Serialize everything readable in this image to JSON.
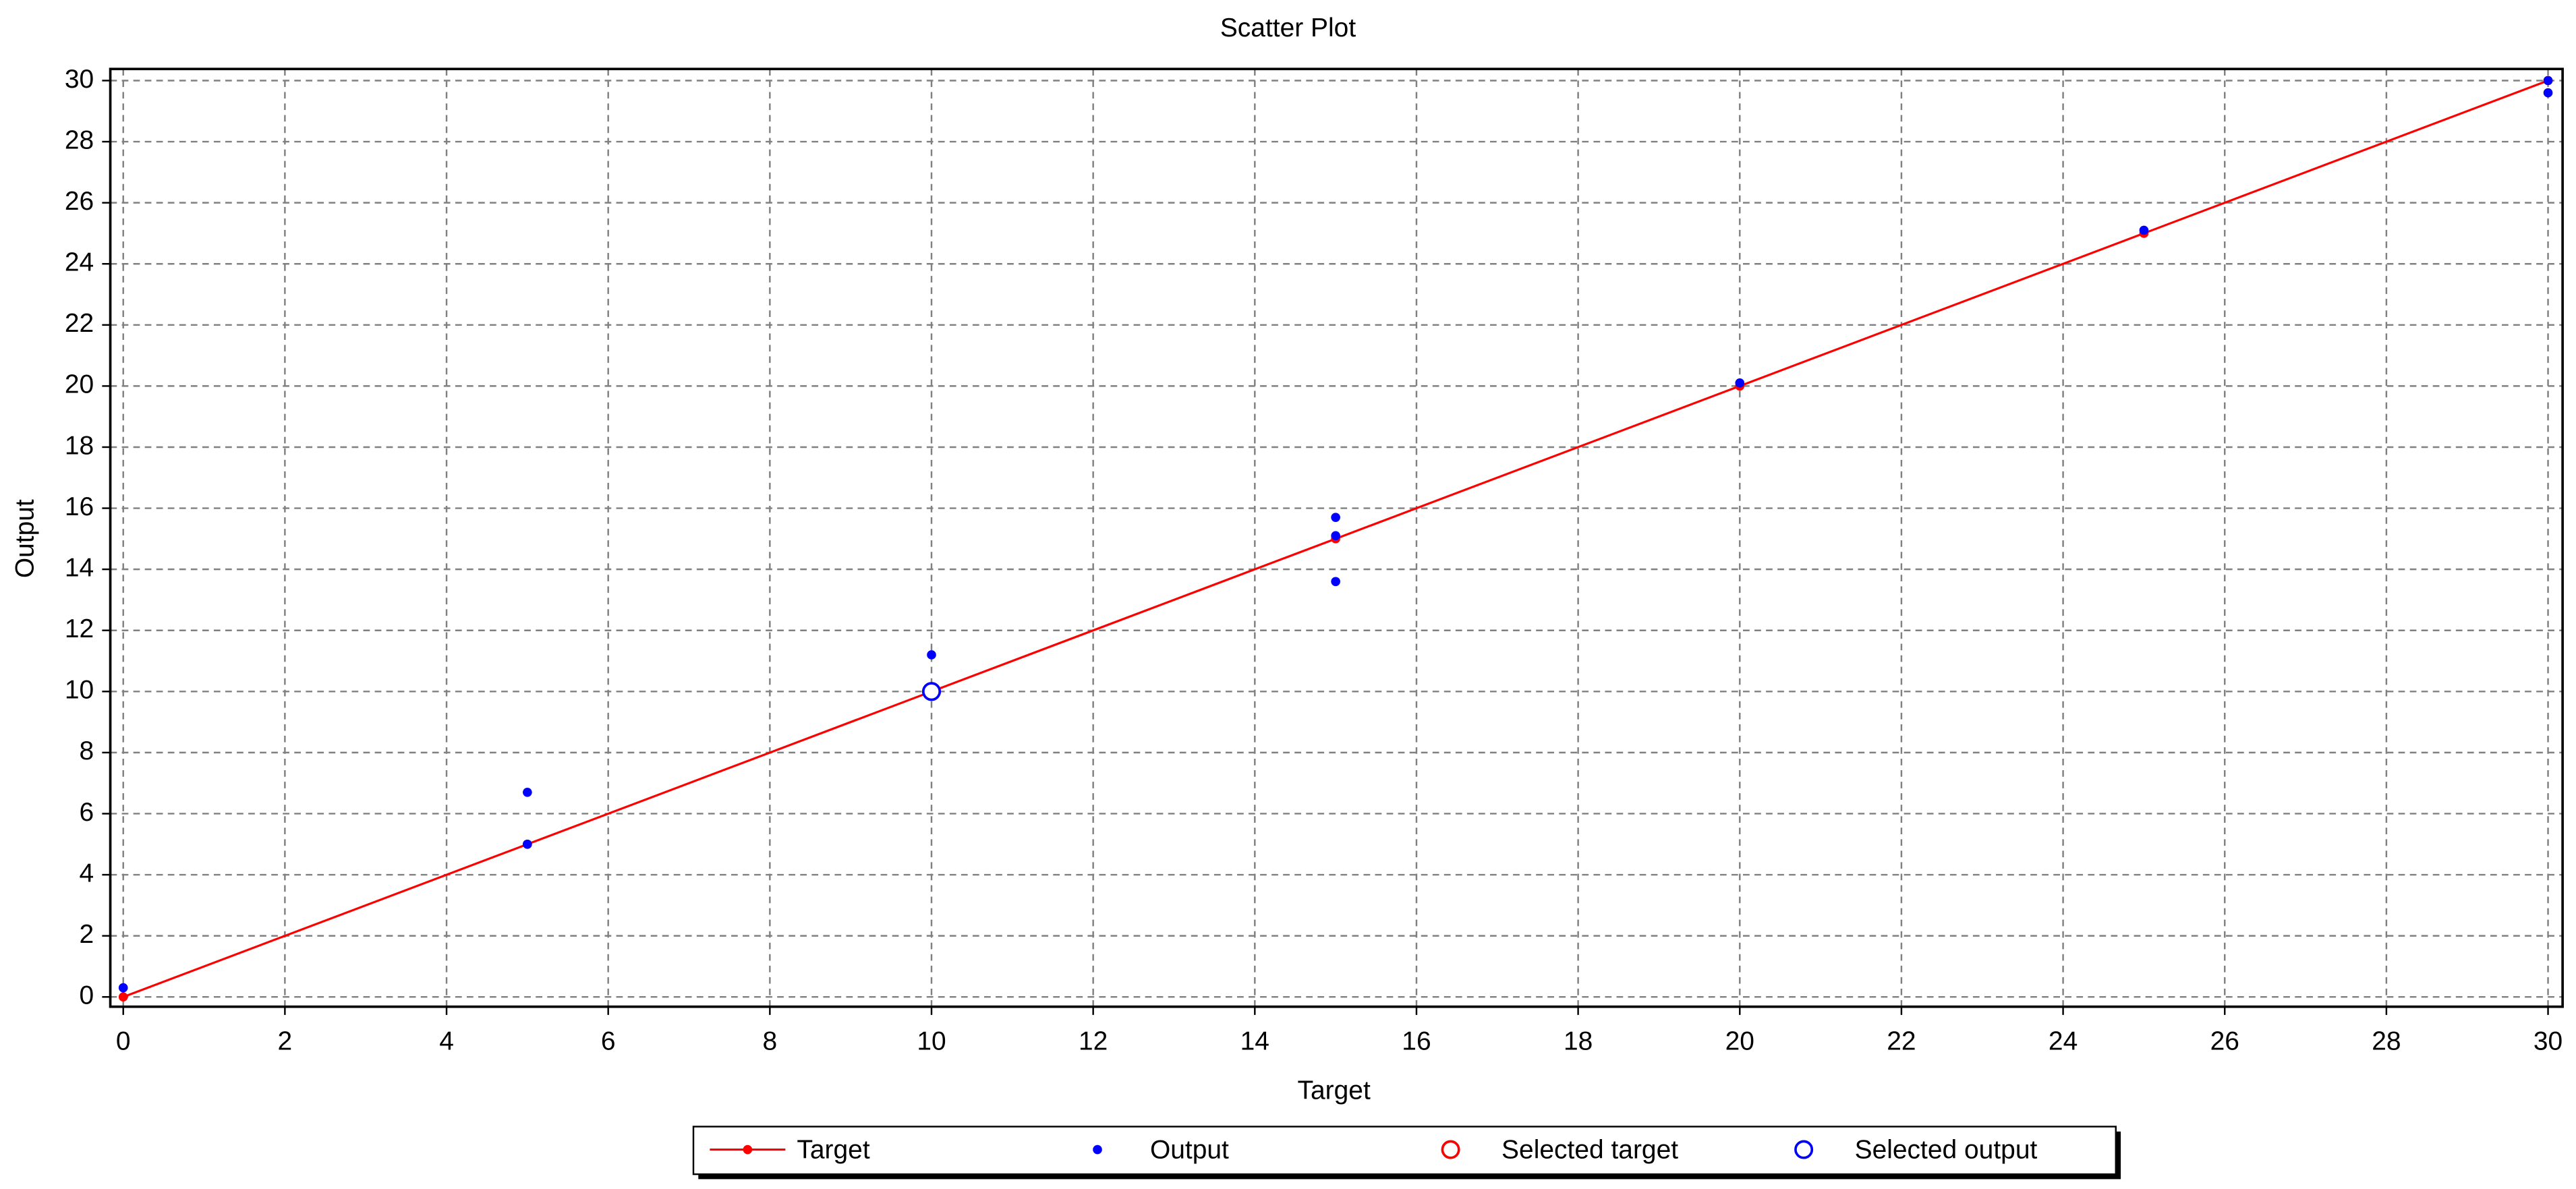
{
  "chart_data": {
    "type": "scatter",
    "title": "Scatter Plot",
    "x_label": "Target",
    "y_label": "Output",
    "xlim": [
      -0.16,
      30.18
    ],
    "ylim": [
      -0.32,
      30.38
    ],
    "xticks": [
      0,
      2,
      4,
      6,
      8,
      10,
      12,
      14,
      16,
      18,
      20,
      22,
      24,
      26,
      28,
      30
    ],
    "yticks": [
      0,
      2,
      4,
      6,
      8,
      10,
      12,
      14,
      16,
      18,
      20,
      22,
      24,
      26,
      28,
      30
    ],
    "grid": true,
    "legend": "bottom",
    "series": [
      {
        "name": "Target",
        "color": "#ff0000",
        "line": true,
        "marker": "dot",
        "x": [
          0,
          5,
          10,
          15,
          20,
          25,
          30
        ],
        "values": [
          0,
          5,
          10,
          15,
          20,
          25,
          30
        ]
      },
      {
        "name": "Output",
        "color": "#0000ff",
        "line": false,
        "marker": "dot",
        "x": [
          0,
          5,
          5,
          10,
          10,
          15,
          15,
          15,
          20,
          25,
          30,
          30
        ],
        "values": [
          0.3,
          5.0,
          6.7,
          11.2,
          10.1,
          15.7,
          15.1,
          13.6,
          20.1,
          25.1,
          30.0,
          29.6
        ]
      },
      {
        "name": "Selected target",
        "color": "#ff0000",
        "line": false,
        "marker": "circle",
        "x": [
          10
        ],
        "values": [
          10
        ]
      },
      {
        "name": "Selected output",
        "color": "#0000ff",
        "line": false,
        "marker": "circle",
        "x": [
          10
        ],
        "values": [
          10
        ]
      }
    ]
  }
}
